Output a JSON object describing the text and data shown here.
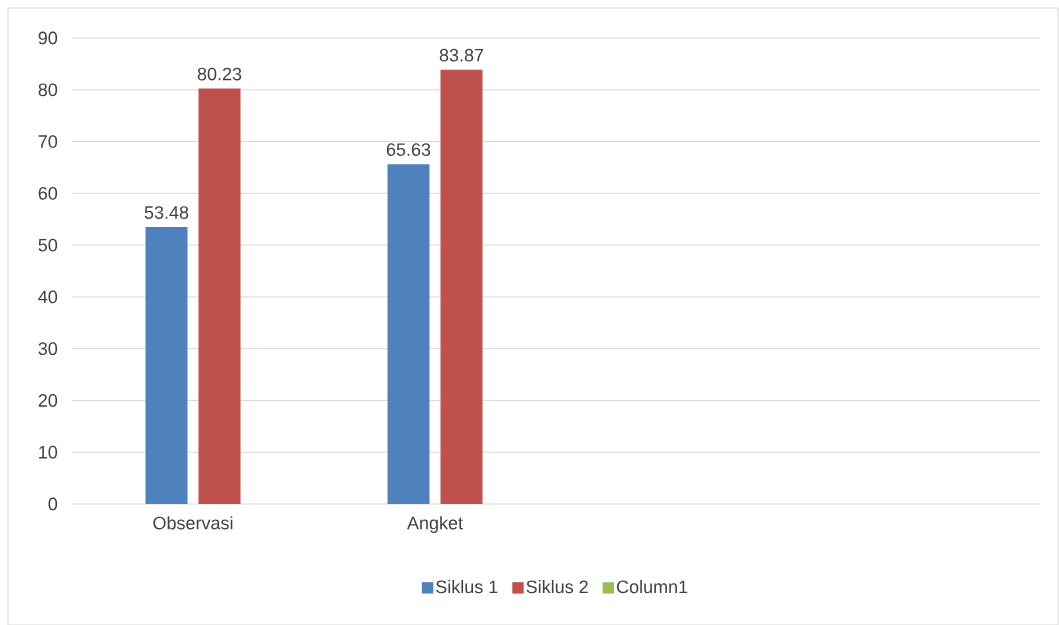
{
  "chart_data": {
    "type": "bar",
    "categories": [
      "Observasi",
      "Angket",
      null,
      null
    ],
    "series": [
      {
        "name": "Siklus 1",
        "color": "#4f81bd",
        "values": [
          53.48,
          65.63,
          null,
          null
        ]
      },
      {
        "name": "Siklus 2",
        "color": "#c0504d",
        "values": [
          80.23,
          83.87,
          null,
          null
        ]
      },
      {
        "name": "Column1",
        "color": "#9bbb59",
        "values": [
          null,
          null,
          null,
          null
        ]
      }
    ],
    "ylim": [
      0,
      90
    ],
    "yticks": [
      0,
      10,
      20,
      30,
      40,
      50,
      60,
      70,
      80,
      90
    ],
    "grid": "y",
    "legend": "bottom",
    "data_labels": true
  }
}
